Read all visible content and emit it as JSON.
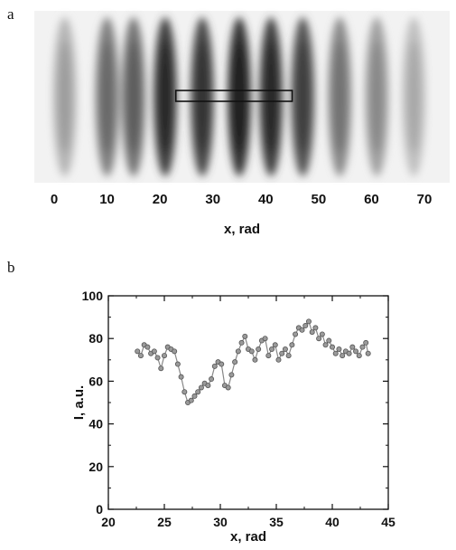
{
  "panels": {
    "a_label": "a",
    "b_label": "b"
  },
  "chart_data": [
    {
      "type": "heatmap",
      "xlabel": "x, rad",
      "xticks": [
        "0",
        "10",
        "20",
        "30",
        "40",
        "50",
        "60",
        "70"
      ],
      "xlim": [
        0,
        70
      ],
      "fringe_centers": [
        2,
        10,
        15,
        21,
        28,
        35,
        41,
        47,
        54,
        61,
        68
      ],
      "fringe_intensity": [
        0.25,
        0.5,
        0.55,
        0.8,
        0.75,
        0.85,
        0.8,
        0.7,
        0.45,
        0.35,
        0.2
      ],
      "selection_box_x": [
        23,
        45
      ]
    },
    {
      "type": "scatter",
      "xlabel": "x, rad",
      "ylabel": "I, a.u.",
      "xlim": [
        20,
        45
      ],
      "ylim": [
        0,
        100
      ],
      "xticks": [
        "20",
        "25",
        "30",
        "35",
        "40",
        "45"
      ],
      "yticks": [
        "0",
        "20",
        "40",
        "60",
        "80",
        "100"
      ],
      "x": [
        22.6,
        22.9,
        23.2,
        23.5,
        23.8,
        24.1,
        24.4,
        24.7,
        25.0,
        25.3,
        25.6,
        25.9,
        26.2,
        26.5,
        26.8,
        27.1,
        27.4,
        27.7,
        28.0,
        28.3,
        28.6,
        28.9,
        29.2,
        29.5,
        29.8,
        30.1,
        30.4,
        30.7,
        31.0,
        31.3,
        31.6,
        31.9,
        32.2,
        32.5,
        32.8,
        33.1,
        33.4,
        33.7,
        34.0,
        34.3,
        34.6,
        34.9,
        35.2,
        35.5,
        35.8,
        36.1,
        36.4,
        36.7,
        37.0,
        37.3,
        37.6,
        37.9,
        38.2,
        38.5,
        38.8,
        39.1,
        39.4,
        39.7,
        40.0,
        40.3,
        40.6,
        40.9,
        41.2,
        41.5,
        41.8,
        42.1,
        42.4,
        42.7,
        43.0,
        43.2
      ],
      "y": [
        74,
        72,
        77,
        76,
        73,
        74,
        71,
        66,
        72,
        76,
        75,
        74,
        68,
        62,
        55,
        50,
        51,
        53,
        55,
        57,
        59,
        58,
        61,
        67,
        69,
        68,
        58,
        57,
        63,
        69,
        74,
        78,
        81,
        75,
        74,
        70,
        75,
        79,
        80,
        72,
        75,
        77,
        70,
        73,
        75,
        72,
        77,
        82,
        85,
        84,
        86,
        88,
        83,
        85,
        80,
        82,
        77,
        79,
        76,
        73,
        75,
        72,
        74,
        73,
        76,
        74,
        72,
        76,
        78,
        73
      ]
    }
  ]
}
